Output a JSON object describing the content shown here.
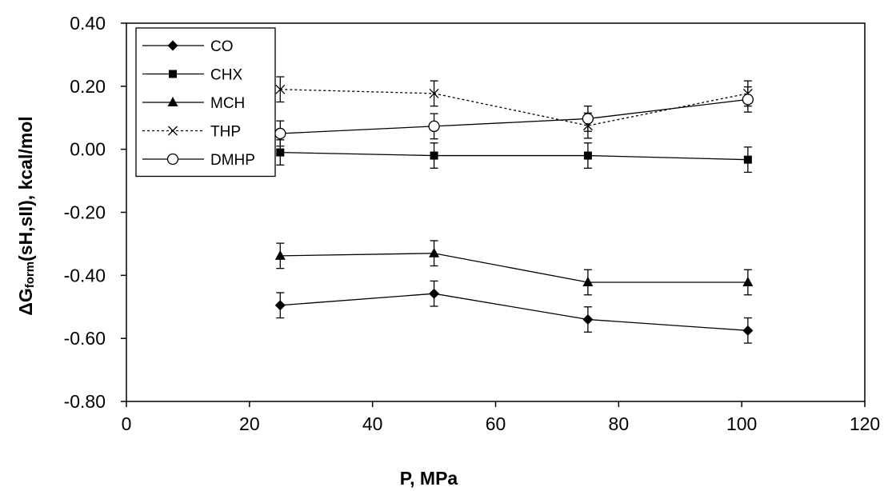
{
  "chart_data": {
    "type": "line",
    "title": "",
    "xlabel": "P, MPa",
    "ylabel_main": "ΔG",
    "ylabel_sub": "form",
    "ylabel_rest": "(sH,sII), kcal/mol",
    "xlim": [
      0,
      120
    ],
    "ylim": [
      -0.8,
      0.4
    ],
    "xticks": [
      0,
      20,
      40,
      60,
      80,
      100,
      120
    ],
    "xtick_labels": [
      "0",
      "20",
      "40",
      "60",
      "80",
      "100",
      "120"
    ],
    "yticks": [
      0.4,
      0.2,
      0.0,
      -0.2,
      -0.4,
      -0.6,
      -0.8
    ],
    "ytick_labels": [
      "0.40",
      "0.20",
      "0.00",
      "-0.20",
      "-0.40",
      "-0.60",
      "-0.80"
    ],
    "grid": false,
    "legend_position": "top-left",
    "x": [
      25,
      50,
      75,
      101
    ],
    "series": [
      {
        "name": "CO",
        "marker": "diamond",
        "dash": "solid",
        "values": [
          -0.495,
          -0.458,
          -0.54,
          -0.575
        ],
        "error": [
          0.04,
          0.04,
          0.04,
          0.04
        ]
      },
      {
        "name": "CHX",
        "marker": "square",
        "dash": "solid",
        "values": [
          -0.01,
          -0.02,
          -0.02,
          -0.033
        ],
        "error": [
          0.04,
          0.04,
          0.04,
          0.04
        ]
      },
      {
        "name": "MCH",
        "marker": "triangle",
        "dash": "solid",
        "values": [
          -0.338,
          -0.33,
          -0.422,
          -0.422
        ],
        "error": [
          0.04,
          0.04,
          0.04,
          0.04
        ]
      },
      {
        "name": "THP",
        "marker": "x",
        "dash": "dotted",
        "values": [
          0.19,
          0.177,
          0.075,
          0.177
        ],
        "error": [
          0.04,
          0.04,
          0.04,
          0.04
        ]
      },
      {
        "name": "DMHP",
        "marker": "circle",
        "dash": "solid",
        "values": [
          0.05,
          0.073,
          0.097,
          0.158
        ],
        "error": [
          0.04,
          0.04,
          0.04,
          0.04
        ]
      }
    ]
  }
}
